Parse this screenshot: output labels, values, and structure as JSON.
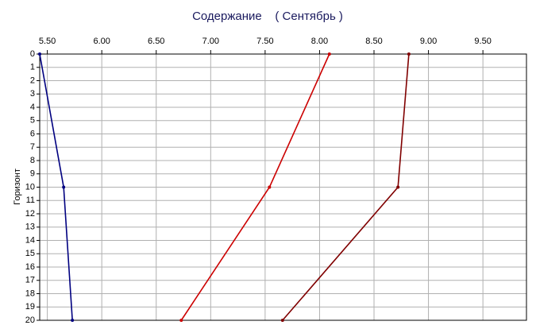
{
  "chart_data": {
    "type": "line",
    "title": "Содержание    ( Сентябрь )",
    "y_label": "Горизонт",
    "y": [
      0,
      10,
      20
    ],
    "series": [
      {
        "color": "#000080",
        "values": [
          5.43,
          5.65,
          5.73
        ]
      },
      {
        "color": "#cc0000",
        "values": [
          8.09,
          7.54,
          6.73
        ]
      },
      {
        "color": "#800000",
        "values": [
          8.82,
          8.72,
          7.66
        ]
      }
    ],
    "xlim": [
      5.43,
      9.9
    ],
    "xticks": [
      {
        "value": 5.5,
        "label": "5.50"
      },
      {
        "value": 6,
        "label": "6.00"
      },
      {
        "value": 6.5,
        "label": "6.50"
      },
      {
        "value": 7,
        "label": "7.00"
      },
      {
        "value": 7.5,
        "label": "7.50"
      },
      {
        "value": 8,
        "label": "8.00"
      },
      {
        "value": 8.5,
        "label": "8.50"
      },
      {
        "value": 9,
        "label": "9.00"
      },
      {
        "value": 9.5,
        "label": "9.50"
      }
    ],
    "ylim": [
      0,
      20
    ],
    "yticks": [
      0,
      1,
      2,
      3,
      4,
      5,
      6,
      7,
      8,
      9,
      10,
      11,
      12,
      13,
      14,
      15,
      16,
      17,
      18,
      19,
      20
    ],
    "grid": true
  }
}
